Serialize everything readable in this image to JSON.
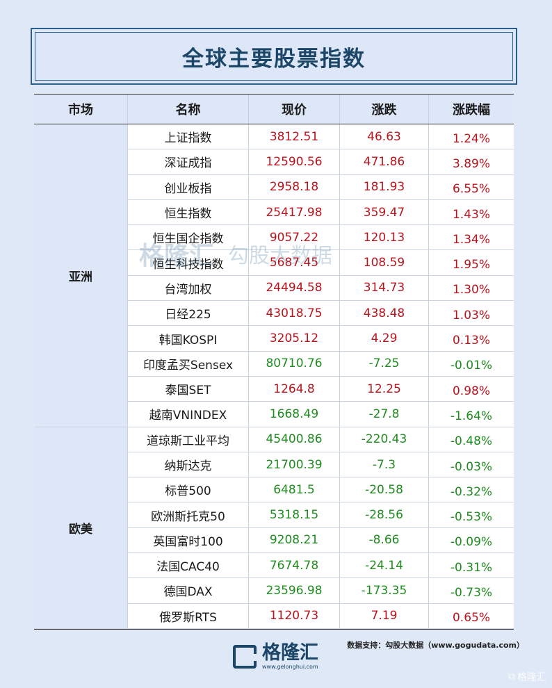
{
  "title": "全球主要股票指数",
  "headers": [
    "市场",
    "名称",
    "现价",
    "涨跌",
    "涨跌幅"
  ],
  "groups": [
    {
      "market": "亚洲",
      "rows": [
        {
          "name": "上证指数",
          "price": "3812.51",
          "change": "46.63",
          "pct": "1.24%",
          "dir": "up"
        },
        {
          "name": "深证成指",
          "price": "12590.56",
          "change": "471.86",
          "pct": "3.89%",
          "dir": "up"
        },
        {
          "name": "创业板指",
          "price": "2958.18",
          "change": "181.93",
          "pct": "6.55%",
          "dir": "up"
        },
        {
          "name": "恒生指数",
          "price": "25417.98",
          "change": "359.47",
          "pct": "1.43%",
          "dir": "up"
        },
        {
          "name": "恒生国企指数",
          "price": "9057.22",
          "change": "120.13",
          "pct": "1.34%",
          "dir": "up"
        },
        {
          "name": "恒生科技指数",
          "price": "5687.45",
          "change": "108.59",
          "pct": "1.95%",
          "dir": "up"
        },
        {
          "name": "台湾加权",
          "price": "24494.58",
          "change": "314.73",
          "pct": "1.30%",
          "dir": "up"
        },
        {
          "name": "日经225",
          "price": "43018.75",
          "change": "438.48",
          "pct": "1.03%",
          "dir": "up"
        },
        {
          "name": "韩国KOSPI",
          "price": "3205.12",
          "change": "4.29",
          "pct": "0.13%",
          "dir": "up"
        },
        {
          "name": "印度孟买Sensex",
          "price": "80710.76",
          "change": "-7.25",
          "pct": "-0.01%",
          "dir": "down"
        },
        {
          "name": "泰国SET",
          "price": "1264.8",
          "change": "12.25",
          "pct": "0.98%",
          "dir": "up"
        },
        {
          "name": "越南VNINDEX",
          "price": "1668.49",
          "change": "-27.8",
          "pct": "-1.64%",
          "dir": "down"
        }
      ]
    },
    {
      "market": "欧美",
      "rows": [
        {
          "name": "道琼斯工业平均",
          "price": "45400.86",
          "change": "-220.43",
          "pct": "-0.48%",
          "dir": "down"
        },
        {
          "name": "纳斯达克",
          "price": "21700.39",
          "change": "-7.3",
          "pct": "-0.03%",
          "dir": "down"
        },
        {
          "name": "标普500",
          "price": "6481.5",
          "change": "-20.58",
          "pct": "-0.32%",
          "dir": "down"
        },
        {
          "name": "欧洲斯托克50",
          "price": "5318.15",
          "change": "-28.56",
          "pct": "-0.53%",
          "dir": "down"
        },
        {
          "name": "英国富时100",
          "price": "9208.21",
          "change": "-8.66",
          "pct": "-0.09%",
          "dir": "down"
        },
        {
          "name": "法国CAC40",
          "price": "7674.78",
          "change": "-24.14",
          "pct": "-0.31%",
          "dir": "down"
        },
        {
          "name": "德国DAX",
          "price": "23596.98",
          "change": "-173.35",
          "pct": "-0.73%",
          "dir": "down"
        },
        {
          "name": "俄罗斯RTS",
          "price": "1120.73",
          "change": "7.19",
          "pct": "0.65%",
          "dir": "up"
        }
      ]
    }
  ],
  "colors": {
    "up": "#b8141d",
    "down": "#1f8c1f",
    "brand": "#1b4668"
  },
  "watermark": {
    "logo": "格隆汇",
    "logo_en": "www.gelonghui.com",
    "text": "勾股大数据",
    "text_en": "www.gogudata.com"
  },
  "footer": {
    "note": "数据支持：勾股大数据（www.gogudata.com）",
    "logo_cn": "格隆汇",
    "logo_en": "www.gelonghui.com",
    "corner": "格隆汇"
  }
}
